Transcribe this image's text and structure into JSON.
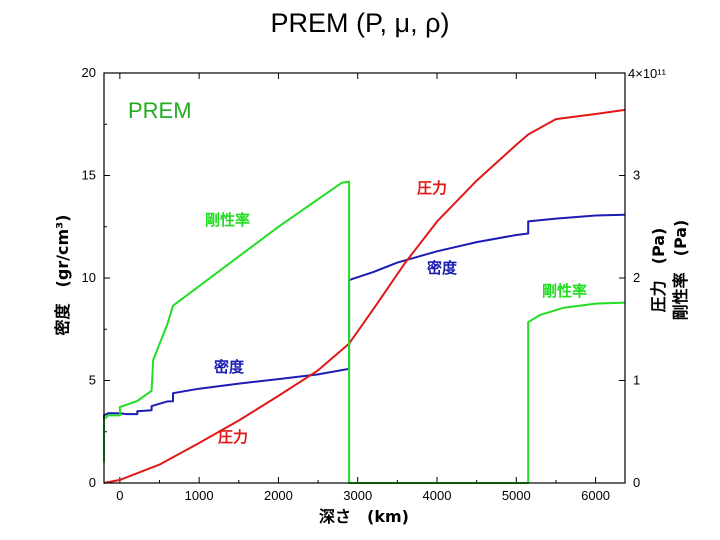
{
  "slide_title": "PREM (P, μ, ρ)",
  "colors": {
    "density": "#1c1cb4",
    "pressure": "#e01818",
    "rigidity": "#22dd22",
    "prem_label": "#22aa22"
  },
  "chart_data": {
    "type": "line",
    "title": "PREM",
    "xlabel": "深さ　(km)",
    "ylabel_left": "密度　(gr/cm³)",
    "ylabel_right_1": "圧力　(Pa)",
    "ylabel_right_2": "剛性率　(Pa)",
    "right_scale_label": "4×10¹¹",
    "xlim": [
      -200,
      6371
    ],
    "ylim_left": [
      0,
      20
    ],
    "ylim_right": [
      0,
      400000000000.0
    ],
    "x_ticks": [
      "0",
      "1000",
      "2000",
      "3000",
      "4000",
      "5000",
      "6000"
    ],
    "x_tick_values": [
      0,
      1000,
      2000,
      3000,
      4000,
      5000,
      6000
    ],
    "y_left_ticks": [
      "0",
      "5",
      "10",
      "15",
      "20"
    ],
    "y_left_tick_values": [
      0,
      5,
      10,
      15,
      20
    ],
    "y_right_ticks": [
      "0",
      "1",
      "2",
      "3"
    ],
    "y_right_tick_values": [
      0,
      1,
      2,
      3
    ],
    "series": [
      {
        "name": "密度",
        "key": "density",
        "axis": "left",
        "unit": "gr/cm3",
        "x": [
          -200,
          -200,
          -150,
          0,
          80,
          220,
          220,
          400,
          400,
          600,
          670,
          670,
          1000,
          1500,
          2000,
          2500,
          2891,
          2891,
          3200,
          3500,
          4000,
          4500,
          5000,
          5150,
          5150,
          5500,
          6000,
          6371
        ],
        "y": [
          1.0,
          3.3,
          3.4,
          3.4,
          3.36,
          3.36,
          3.5,
          3.55,
          3.75,
          3.98,
          3.99,
          4.38,
          4.6,
          4.85,
          5.07,
          5.3,
          5.57,
          9.9,
          10.3,
          10.75,
          11.3,
          11.75,
          12.1,
          12.17,
          12.76,
          12.9,
          13.05,
          13.09
        ]
      },
      {
        "name": "圧力",
        "key": "pressure",
        "axis": "right",
        "unit": "×10¹¹ Pa",
        "x": [
          -200,
          0,
          500,
          1000,
          1500,
          2000,
          2500,
          2891,
          3200,
          3600,
          4000,
          4500,
          5000,
          5150,
          5500,
          6000,
          6371
        ],
        "y": [
          0,
          0.03,
          0.18,
          0.39,
          0.61,
          0.85,
          1.1,
          1.36,
          1.7,
          2.15,
          2.55,
          2.95,
          3.3,
          3.4,
          3.55,
          3.6,
          3.64
        ]
      },
      {
        "name": "剛性率",
        "key": "rigidity",
        "axis": "right",
        "unit": "×10¹¹ Pa",
        "x": [
          -200,
          -200,
          -150,
          0,
          0,
          220,
          220,
          400,
          400,
          420,
          600,
          600,
          670,
          1000,
          2000,
          2800,
          2891,
          2891,
          5150,
          5150,
          5300,
          5600,
          6000,
          6371
        ],
        "y": [
          0.2,
          0.62,
          0.66,
          0.66,
          0.74,
          0.8,
          0.8,
          0.9,
          0.9,
          1.2,
          1.55,
          1.55,
          1.73,
          1.92,
          2.5,
          2.93,
          2.94,
          0,
          0,
          1.57,
          1.64,
          1.71,
          1.75,
          1.76
        ]
      }
    ],
    "annotations": [
      {
        "text": "PREM",
        "color_key": "prem_label"
      },
      {
        "text": "剛性率",
        "color_key": "rigidity"
      },
      {
        "text": "圧力",
        "color_key": "pressure"
      },
      {
        "text": "密度",
        "color_key": "density"
      },
      {
        "text": "剛性率",
        "color_key": "rigidity"
      },
      {
        "text": "密度",
        "color_key": "density"
      },
      {
        "text": "圧力",
        "color_key": "pressure"
      }
    ]
  }
}
